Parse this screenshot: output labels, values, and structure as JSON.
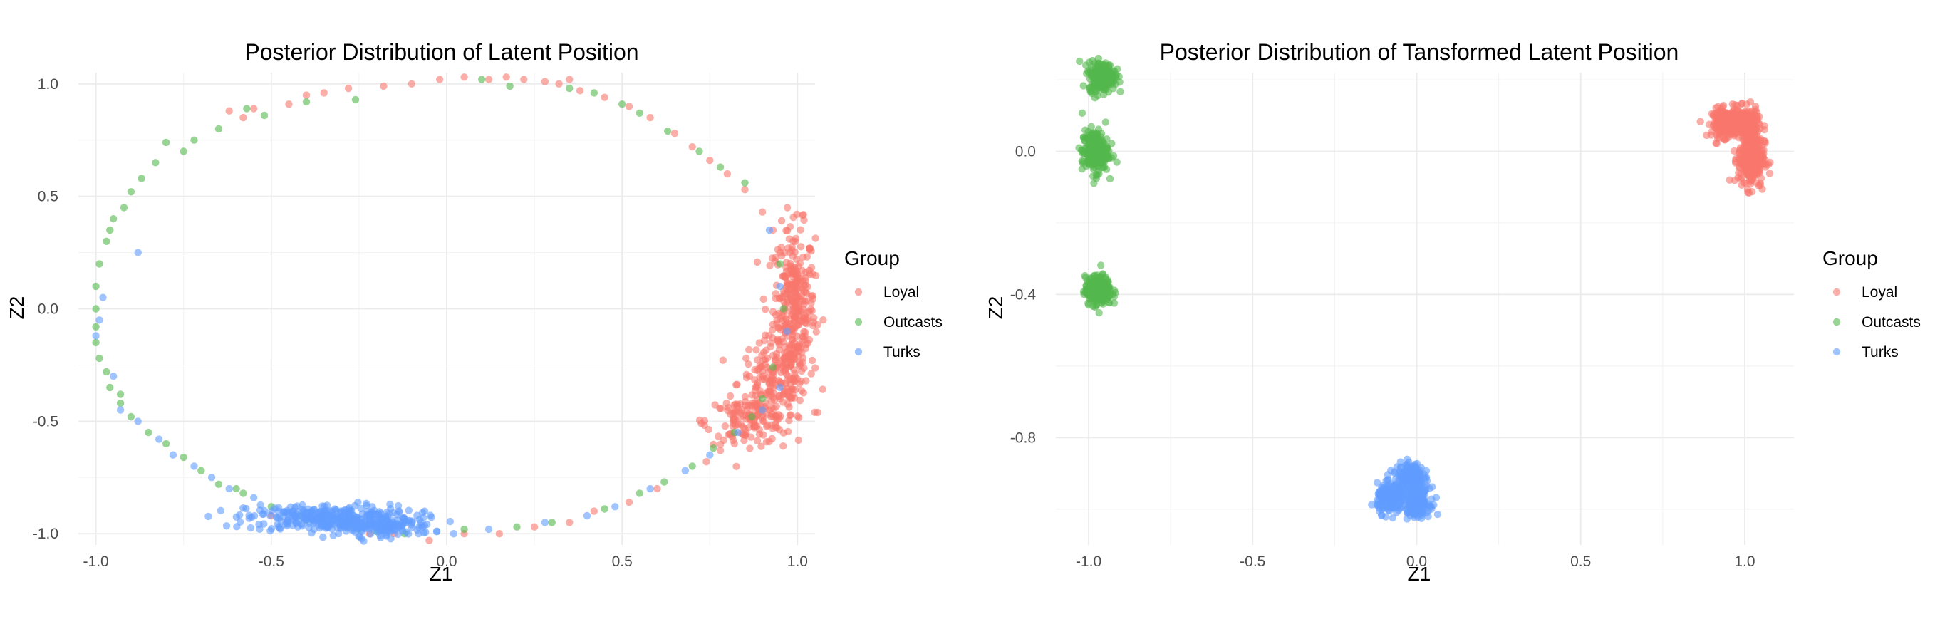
{
  "chart_data": [
    {
      "type": "scatter",
      "title": "Posterior Distribution of Latent Position",
      "xlabel": "Z1",
      "ylabel": "Z2",
      "xlim": [
        -1.05,
        1.05
      ],
      "ylim": [
        -1.05,
        1.05
      ],
      "x_ticks": [
        -1.0,
        -0.5,
        0.0,
        0.5,
        1.0
      ],
      "x_tick_labels": [
        "-1.0",
        "-0.5",
        "0.0",
        "0.5",
        "1.0"
      ],
      "y_ticks": [
        1.0,
        0.5,
        0.0,
        -0.5,
        -1.0
      ],
      "y_tick_labels": [
        "1.0",
        "0.5",
        "0.0",
        "-0.5",
        "-1.0"
      ],
      "grid": true,
      "legend": {
        "title": "Group",
        "position": "right",
        "entries": [
          "Loyal",
          "Outcasts",
          "Turks"
        ]
      },
      "series": [
        {
          "name": "Loyal",
          "color": "#F8766D",
          "points": [
            [
              -0.62,
              0.88
            ],
            [
              -0.55,
              0.89
            ],
            [
              -0.45,
              0.91
            ],
            [
              -0.4,
              0.95
            ],
            [
              -0.35,
              0.96
            ],
            [
              -0.28,
              0.98
            ],
            [
              -0.18,
              0.99
            ],
            [
              -0.1,
              1.0
            ],
            [
              -0.02,
              1.02
            ],
            [
              0.05,
              1.03
            ],
            [
              0.12,
              1.02
            ],
            [
              0.17,
              1.03
            ],
            [
              0.22,
              1.02
            ],
            [
              0.28,
              1.01
            ],
            [
              0.32,
              1.0
            ],
            [
              0.38,
              0.97
            ],
            [
              0.45,
              0.94
            ],
            [
              0.52,
              0.9
            ],
            [
              0.58,
              0.85
            ],
            [
              0.65,
              0.78
            ],
            [
              0.7,
              0.72
            ],
            [
              0.75,
              0.66
            ],
            [
              0.8,
              0.6
            ],
            [
              0.85,
              0.53
            ],
            [
              0.9,
              0.43
            ],
            [
              0.93,
              0.35
            ],
            [
              0.95,
              0.25
            ],
            [
              0.97,
              0.15
            ],
            [
              0.98,
              0.05
            ],
            [
              0.99,
              -0.05
            ],
            [
              0.99,
              -0.15
            ],
            [
              0.98,
              -0.25
            ],
            [
              0.97,
              -0.32
            ],
            [
              0.95,
              -0.4
            ],
            [
              0.92,
              -0.45
            ],
            [
              0.88,
              -0.52
            ],
            [
              0.85,
              -0.56
            ],
            [
              0.82,
              -0.6
            ],
            [
              0.78,
              -0.63
            ],
            [
              0.74,
              -0.68
            ],
            [
              0.6,
              -0.8
            ],
            [
              0.52,
              -0.86
            ],
            [
              0.42,
              -0.9
            ],
            [
              0.35,
              -0.95
            ],
            [
              0.25,
              -0.97
            ],
            [
              0.15,
              -1.0
            ],
            [
              0.05,
              -1.0
            ],
            [
              -0.05,
              -1.03
            ],
            [
              -0.15,
              -1.0
            ],
            [
              -0.22,
              -1.0
            ],
            [
              -0.35,
              -0.96
            ],
            [
              -0.5,
              -0.92
            ],
            [
              0.35,
              1.02
            ],
            [
              -0.58,
              0.85
            ]
          ],
          "clusters": [
            {
              "center": [
                0.99,
                0.0
              ],
              "spread": [
                0.03,
                0.18
              ],
              "count": 320
            },
            {
              "center": [
                0.93,
                -0.33
              ],
              "spread": [
                0.05,
                0.1
              ],
              "count": 160
            },
            {
              "center": [
                0.86,
                -0.5
              ],
              "spread": [
                0.06,
                0.05
              ],
              "count": 120
            }
          ]
        },
        {
          "name": "Outcasts",
          "color": "#53B74C",
          "points": [
            [
              -0.8,
              0.74
            ],
            [
              -0.72,
              0.75
            ],
            [
              -0.65,
              0.8
            ],
            [
              -0.57,
              0.89
            ],
            [
              -0.52,
              0.86
            ],
            [
              -0.4,
              0.92
            ],
            [
              -0.26,
              0.93
            ],
            [
              -0.75,
              0.7
            ],
            [
              -0.83,
              0.65
            ],
            [
              -0.87,
              0.58
            ],
            [
              -0.9,
              0.52
            ],
            [
              -0.92,
              0.45
            ],
            [
              -0.95,
              0.4
            ],
            [
              -0.97,
              0.3
            ],
            [
              -0.99,
              0.2
            ],
            [
              -1.0,
              0.1
            ],
            [
              -1.0,
              0.0
            ],
            [
              -1.0,
              -0.08
            ],
            [
              -1.0,
              -0.15
            ],
            [
              -0.99,
              -0.22
            ],
            [
              -0.97,
              -0.28
            ],
            [
              -0.96,
              -0.35
            ],
            [
              -0.93,
              -0.42
            ],
            [
              -0.9,
              -0.48
            ],
            [
              -0.85,
              -0.55
            ],
            [
              -0.8,
              -0.6
            ],
            [
              -0.75,
              -0.66
            ],
            [
              -0.7,
              -0.72
            ],
            [
              -0.65,
              -0.78
            ],
            [
              -0.58,
              -0.82
            ],
            [
              -0.5,
              -0.88
            ],
            [
              -0.42,
              -0.92
            ],
            [
              -0.35,
              -0.95
            ],
            [
              -0.28,
              -0.97
            ],
            [
              -0.2,
              -0.99
            ],
            [
              -0.12,
              -1.0
            ],
            [
              0.1,
              1.02
            ],
            [
              0.18,
              0.99
            ],
            [
              0.35,
              0.98
            ],
            [
              0.42,
              0.96
            ],
            [
              0.5,
              0.91
            ],
            [
              0.55,
              0.87
            ],
            [
              0.63,
              0.79
            ],
            [
              0.72,
              0.7
            ],
            [
              0.78,
              0.63
            ],
            [
              0.85,
              0.56
            ],
            [
              0.95,
              0.2
            ],
            [
              0.96,
              0.0
            ],
            [
              0.93,
              -0.26
            ],
            [
              0.9,
              -0.4
            ],
            [
              0.87,
              -0.48
            ],
            [
              0.82,
              -0.55
            ],
            [
              0.76,
              -0.62
            ],
            [
              0.7,
              -0.7
            ],
            [
              0.62,
              -0.77
            ],
            [
              0.55,
              -0.82
            ],
            [
              0.45,
              -0.89
            ],
            [
              0.3,
              -0.95
            ],
            [
              0.2,
              -0.97
            ],
            [
              0.05,
              -0.98
            ],
            [
              -0.3,
              -0.96
            ],
            [
              -0.25,
              -0.98
            ],
            [
              -0.4,
              -0.94
            ],
            [
              -0.6,
              -0.8
            ],
            [
              -0.96,
              0.35
            ],
            [
              -0.93,
              -0.38
            ]
          ],
          "clusters": []
        },
        {
          "name": "Turks",
          "color": "#619CFF",
          "points": [
            [
              -0.98,
              0.05
            ],
            [
              -0.99,
              -0.05
            ],
            [
              -1.0,
              -0.12
            ],
            [
              -0.95,
              -0.3
            ],
            [
              -0.93,
              -0.45
            ],
            [
              -0.88,
              -0.5
            ],
            [
              -0.82,
              -0.58
            ],
            [
              -0.78,
              -0.65
            ],
            [
              -0.72,
              -0.7
            ],
            [
              -0.67,
              -0.75
            ],
            [
              -0.62,
              -0.8
            ],
            [
              -0.55,
              -0.84
            ],
            [
              -0.48,
              -0.9
            ],
            [
              0.92,
              0.35
            ],
            [
              0.95,
              0.1
            ],
            [
              0.97,
              -0.1
            ],
            [
              0.95,
              -0.35
            ],
            [
              0.9,
              -0.45
            ],
            [
              0.83,
              -0.55
            ],
            [
              0.75,
              -0.65
            ],
            [
              0.68,
              -0.72
            ],
            [
              0.58,
              -0.8
            ],
            [
              0.48,
              -0.88
            ],
            [
              0.4,
              -0.92
            ],
            [
              0.28,
              -0.95
            ],
            [
              0.12,
              -0.98
            ],
            [
              0.02,
              -1.0
            ],
            [
              -0.08,
              -1.0
            ],
            [
              -0.1,
              -0.96
            ],
            [
              -0.88,
              0.25
            ]
          ],
          "clusters": [
            {
              "center": [
                -0.33,
                -0.93
              ],
              "spread": [
                0.12,
                0.03
              ],
              "count": 320
            },
            {
              "center": [
                -0.2,
                -0.97
              ],
              "spread": [
                0.08,
                0.02
              ],
              "count": 120
            }
          ]
        }
      ]
    },
    {
      "type": "scatter",
      "title": "Posterior Distribution of Tansformed Latent Position",
      "xlabel": "Z1",
      "ylabel": "Z2",
      "xlim": [
        -1.1,
        1.15
      ],
      "ylim": [
        -1.1,
        0.22
      ],
      "x_ticks": [
        -1.0,
        -0.5,
        0.0,
        0.5,
        1.0
      ],
      "x_tick_labels": [
        "-1.0",
        "-0.5",
        "0.0",
        "0.5",
        "1.0"
      ],
      "y_ticks": [
        0.0,
        -0.4,
        -0.8
      ],
      "y_tick_labels": [
        "0.0",
        "-0.4",
        "-0.8"
      ],
      "grid": true,
      "legend": {
        "title": "Group",
        "position": "right",
        "entries": [
          "Loyal",
          "Outcasts",
          "Turks"
        ]
      },
      "series": [
        {
          "name": "Loyal",
          "color": "#F8766D",
          "points": [],
          "clusters": [
            {
              "center": [
                0.94,
                0.08
              ],
              "spread": [
                0.02,
                0.02
              ],
              "count": 200
            },
            {
              "center": [
                1.0,
                0.08
              ],
              "spread": [
                0.02,
                0.02
              ],
              "count": 200
            },
            {
              "center": [
                1.02,
                -0.02
              ],
              "spread": [
                0.02,
                0.04
              ],
              "count": 300
            }
          ]
        },
        {
          "name": "Outcasts",
          "color": "#53B74C",
          "points": [],
          "clusters": [
            {
              "center": [
                -0.96,
                0.21
              ],
              "spread": [
                0.02,
                0.02
              ],
              "count": 250
            },
            {
              "center": [
                -0.98,
                0.0
              ],
              "spread": [
                0.02,
                0.03
              ],
              "count": 250
            },
            {
              "center": [
                -0.97,
                -0.39
              ],
              "spread": [
                0.02,
                0.02
              ],
              "count": 250
            }
          ]
        },
        {
          "name": "Turks",
          "color": "#619CFF",
          "points": [],
          "clusters": [
            {
              "center": [
                -0.02,
                -0.91
              ],
              "spread": [
                0.02,
                0.02
              ],
              "count": 200
            },
            {
              "center": [
                -0.08,
                -0.97
              ],
              "spread": [
                0.02,
                0.02
              ],
              "count": 200
            },
            {
              "center": [
                0.0,
                -0.98
              ],
              "spread": [
                0.02,
                0.02
              ],
              "count": 200
            }
          ]
        }
      ]
    }
  ]
}
